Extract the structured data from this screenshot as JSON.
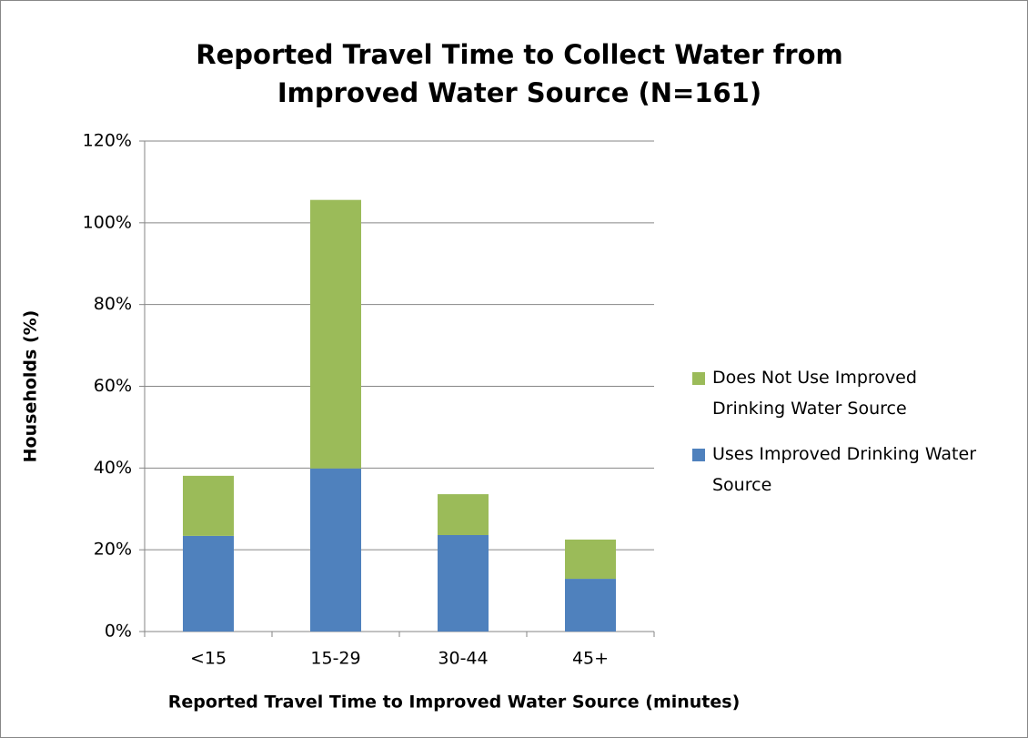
{
  "chart_data": {
    "type": "stacked-bar",
    "title": "Reported Travel Time to Collect Water from Improved Water Source (N=161)",
    "x_label": "Reported Travel Time to Improved Water Source (minutes)",
    "y_label": "Households (%)",
    "categories": [
      "<15",
      "15-29",
      "30-44",
      "45+"
    ],
    "series": [
      {
        "name": "Uses Improved Drinking Water Source",
        "color": "#4f81bd",
        "values": [
          23.4,
          39.9,
          23.6,
          12.9
        ]
      },
      {
        "name": "Does Not Use Improved Drinking Water Source",
        "color": "#9bbb59",
        "values": [
          14.7,
          65.7,
          10.0,
          9.6
        ]
      }
    ],
    "ylim": [
      0,
      120
    ],
    "yticks": [
      {
        "value": 0,
        "label": "0%"
      },
      {
        "value": 20,
        "label": "20%"
      },
      {
        "value": 40,
        "label": "40%"
      },
      {
        "value": 60,
        "label": "60%"
      },
      {
        "value": 80,
        "label": "80%"
      },
      {
        "value": 100,
        "label": "100%"
      },
      {
        "value": 120,
        "label": "120%"
      }
    ],
    "grid": true,
    "legend": "right"
  }
}
